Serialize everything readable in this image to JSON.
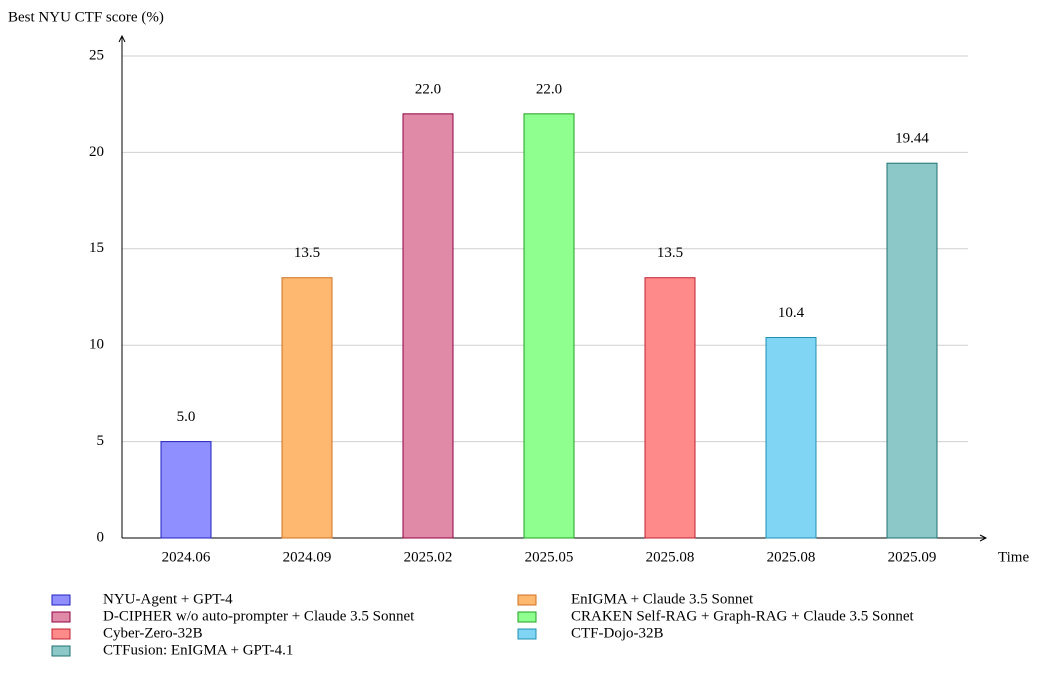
{
  "chart_data": {
    "type": "bar",
    "y_label": "Best NYU CTF score (%)",
    "x_label": "Time",
    "categories": [
      "2024.06",
      "2024.09",
      "2025.02",
      "2025.05",
      "2025.08",
      "2025.08",
      "2025.09"
    ],
    "values": [
      5.0,
      13.5,
      22.0,
      22.0,
      13.5,
      10.4,
      19.44
    ],
    "value_labels": [
      "5.0",
      "13.5",
      "22.0",
      "22.0",
      "13.5",
      "10.4",
      "19.44"
    ],
    "legend": [
      "NYU-Agent + GPT-4",
      "EnIGMA + Claude 3.5 Sonnet",
      "D-CIPHER w/o auto-prompter + Claude 3.5 Sonnet",
      "CRAKEN Self-RAG + Graph-RAG + Claude 3.5 Sonnet",
      "Cyber-Zero-32B",
      "CTF-Dojo-32B",
      "CTFusion: EnIGMA + GPT-4.1"
    ],
    "colors": [
      "#8f8fff",
      "#ffb870",
      "#e08aa8",
      "#8fff8f",
      "#ff8a8a",
      "#80d4f4",
      "#8cc8c8"
    ],
    "edge_colors": [
      "#2020c0",
      "#d07020",
      "#900040",
      "#20a020",
      "#c02030",
      "#2090b0",
      "#207070"
    ],
    "ylim": [
      0,
      25
    ],
    "yticks": [
      0,
      5,
      10,
      15,
      20,
      25
    ],
    "grid": true
  }
}
